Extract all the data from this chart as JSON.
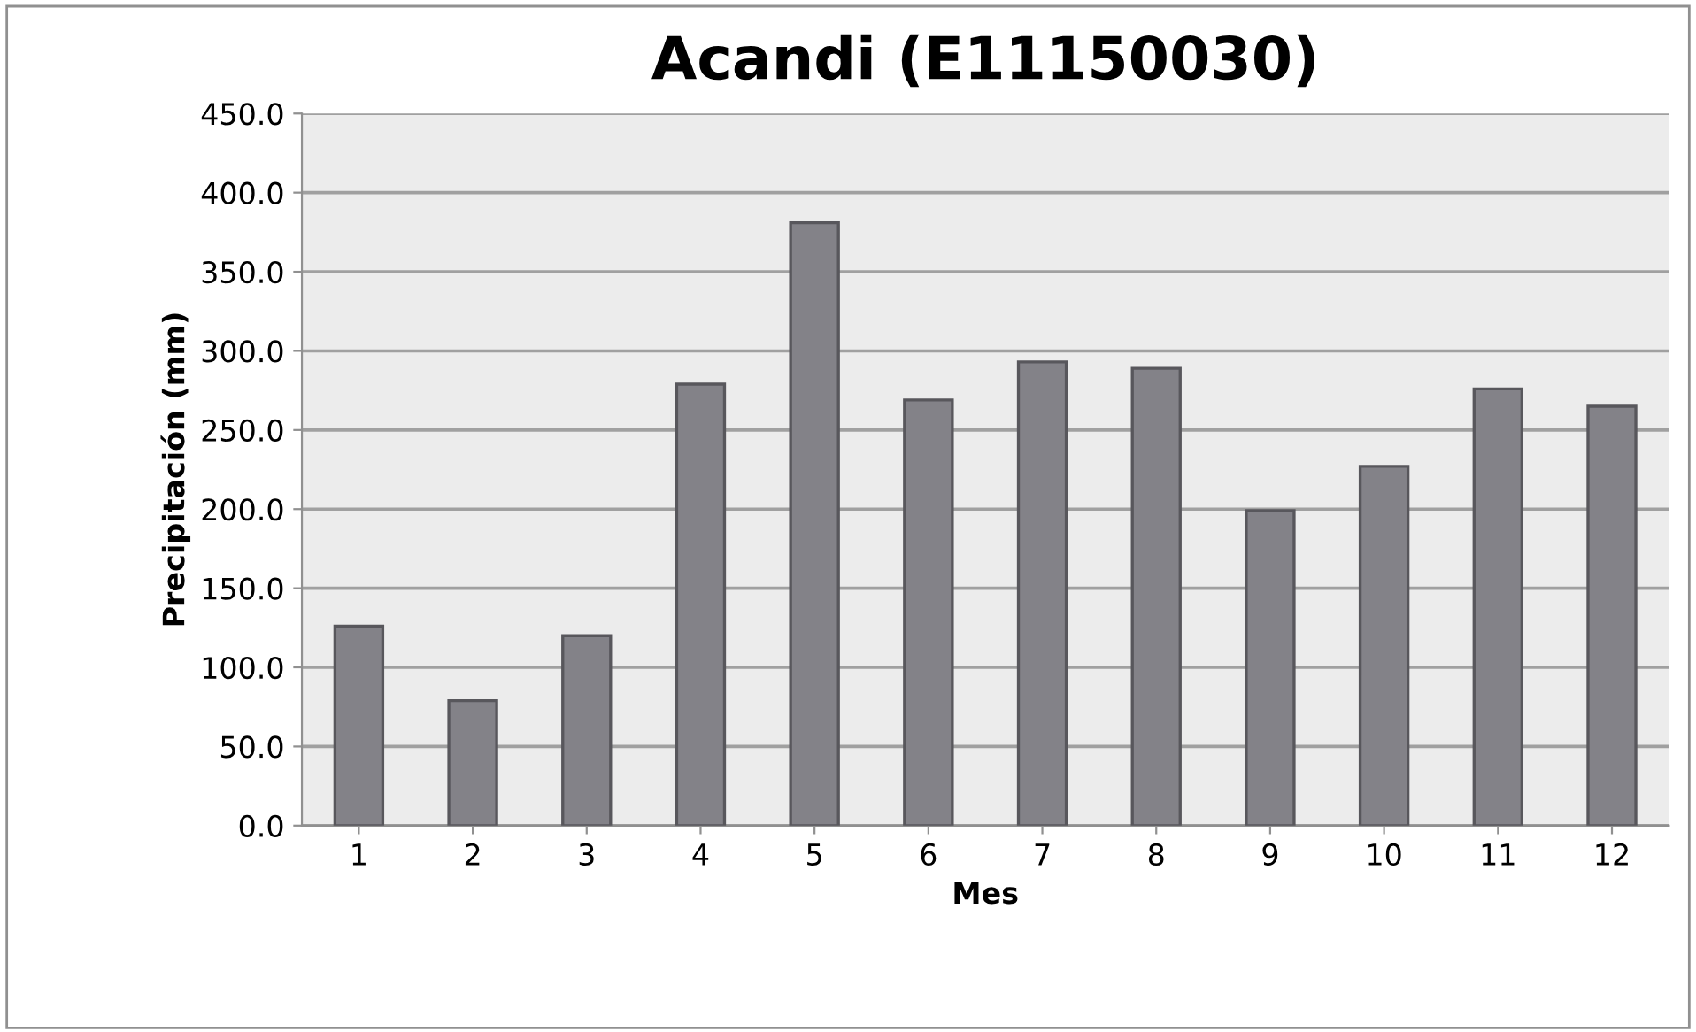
{
  "chart_data": {
    "type": "bar",
    "title": "Acandi (E11150030)",
    "xlabel": "Mes",
    "ylabel": "Precipitación (mm)",
    "categories": [
      "1",
      "2",
      "3",
      "4",
      "5",
      "6",
      "7",
      "8",
      "9",
      "10",
      "11",
      "12"
    ],
    "values": [
      126,
      79,
      120,
      279,
      381,
      269,
      293,
      289,
      199,
      227,
      276,
      265
    ],
    "color": "#838288",
    "ylim": [
      0,
      450
    ],
    "yticks": [
      {
        "value": 0,
        "label": "0.0"
      },
      {
        "value": 50,
        "label": "50.0"
      },
      {
        "value": 100,
        "label": "100.0"
      },
      {
        "value": 150,
        "label": "150.0"
      },
      {
        "value": 200,
        "label": "200.0"
      },
      {
        "value": 250,
        "label": "250.0"
      },
      {
        "value": 300,
        "label": "300.0"
      },
      {
        "value": 350,
        "label": "350.0"
      },
      {
        "value": 400,
        "label": "400.0"
      },
      {
        "value": 450,
        "label": "450.0"
      }
    ],
    "grid": "y",
    "legend": false
  }
}
